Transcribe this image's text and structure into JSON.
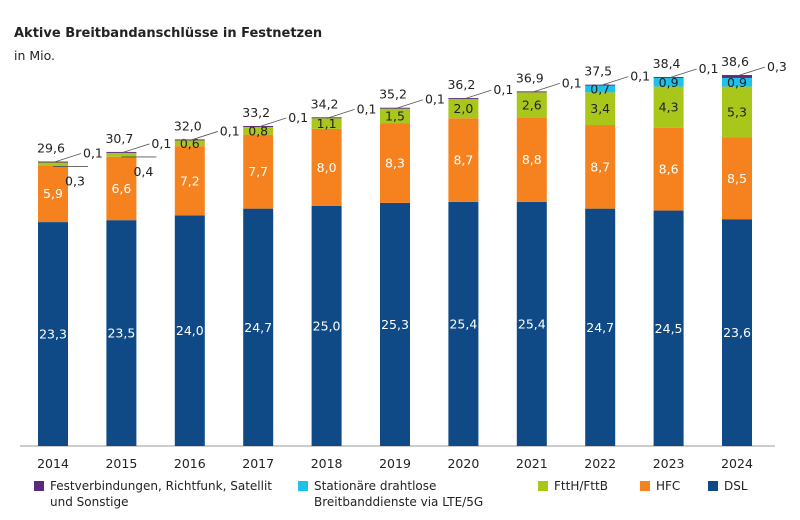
{
  "chart_data": {
    "type": "bar",
    "stacked": true,
    "title": "Aktive Breitbandanschlüsse in Festnetzen",
    "subtitle": "in Mio.",
    "categories": [
      "2014",
      "2015",
      "2016",
      "2017",
      "2018",
      "2019",
      "2020",
      "2021",
      "2022",
      "2023",
      "2024"
    ],
    "totals": [
      "29,6",
      "30,7",
      "32,0",
      "33,2",
      "34,2",
      "35,2",
      "36,2",
      "36,9",
      "37,5",
      "38,4",
      "38,6"
    ],
    "series": [
      {
        "name": "DSL",
        "color": "#0f4a87",
        "values": [
          23.3,
          23.5,
          24.0,
          24.7,
          25.0,
          25.3,
          25.4,
          25.4,
          24.7,
          24.5,
          23.6
        ]
      },
      {
        "name": "HFC",
        "color": "#f5821f",
        "values": [
          5.9,
          6.6,
          7.2,
          7.7,
          8.0,
          8.3,
          8.7,
          8.8,
          8.7,
          8.6,
          8.5
        ]
      },
      {
        "name": "FttH/FttB",
        "color": "#a9c71b",
        "values": [
          0.3,
          0.4,
          0.6,
          0.8,
          1.1,
          1.5,
          2.0,
          2.6,
          3.4,
          4.3,
          5.3
        ]
      },
      {
        "name": "Stationäre drahtlose Breitbanddienste via LTE/5G",
        "color": "#1ec1ea",
        "values": [
          null,
          null,
          null,
          null,
          null,
          null,
          null,
          null,
          0.7,
          0.9,
          0.9
        ]
      },
      {
        "name": "Festverbindungen, Richtfunk, Satellit und Sonstige",
        "color": "#5a2a7d",
        "values": [
          0.1,
          0.1,
          0.1,
          0.1,
          0.1,
          0.1,
          0.1,
          0.1,
          0.1,
          0.1,
          0.3
        ]
      }
    ],
    "ylim": [
      0,
      40
    ],
    "grid": false,
    "legend": "bottom"
  },
  "legend": [
    {
      "line1": "Festverbindungen, Richtfunk, Satellit",
      "line2": "und Sonstige",
      "color": "#5a2a7d"
    },
    {
      "line1": "Stationäre drahtlose",
      "line2": "Breitbanddienste via LTE/5G",
      "color": "#1ec1ea"
    },
    {
      "line1": "FttH/FttB",
      "line2": "",
      "color": "#a9c71b"
    },
    {
      "line1": "HFC",
      "line2": "",
      "color": "#f5821f"
    },
    {
      "line1": "DSL",
      "line2": "",
      "color": "#0f4a87"
    }
  ]
}
